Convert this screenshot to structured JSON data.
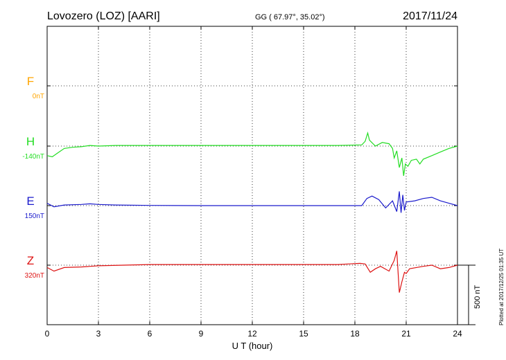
{
  "header": {
    "station": "Lovozero (LOZ)  [AARI]",
    "coords": "GG ( 67.97°,  35.02°)",
    "date": "2017/11/24"
  },
  "footer_note": "Plotted at 2017/12/25 01:35 UT",
  "colors": {
    "F": "#ffa500",
    "H": "#22dd22",
    "E": "#1a1acc",
    "Z": "#dd1111",
    "grid": "#000000"
  },
  "chart_data": {
    "type": "line",
    "xlabel": "U T (hour)",
    "xlim": [
      0,
      24
    ],
    "xticks": [
      0,
      3,
      6,
      9,
      12,
      15,
      18,
      21,
      24
    ],
    "scale_bar": {
      "label": "500 nT",
      "value_nT": 500
    },
    "series": [
      {
        "name": "F",
        "offset_label": "0nT",
        "color": "#ffa500",
        "points": []
      },
      {
        "name": "H",
        "offset_label": "-140nT",
        "color": "#22dd22",
        "points": [
          [
            0,
            -80
          ],
          [
            0.3,
            -90
          ],
          [
            0.6,
            -60
          ],
          [
            1,
            -20
          ],
          [
            1.5,
            -10
          ],
          [
            2,
            -5
          ],
          [
            2.5,
            5
          ],
          [
            3,
            0
          ],
          [
            4,
            5
          ],
          [
            6,
            5
          ],
          [
            9,
            5
          ],
          [
            12,
            5
          ],
          [
            15,
            5
          ],
          [
            17,
            5
          ],
          [
            18.4,
            10
          ],
          [
            18.6,
            40
          ],
          [
            18.75,
            110
          ],
          [
            18.85,
            50
          ],
          [
            19.2,
            0
          ],
          [
            19.6,
            30
          ],
          [
            20,
            20
          ],
          [
            20.2,
            -20
          ],
          [
            20.3,
            -100
          ],
          [
            20.45,
            -40
          ],
          [
            20.6,
            -180
          ],
          [
            20.75,
            -100
          ],
          [
            20.85,
            -250
          ],
          [
            20.95,
            -150
          ],
          [
            21.1,
            -170
          ],
          [
            21.3,
            -120
          ],
          [
            21.6,
            -110
          ],
          [
            21.8,
            -150
          ],
          [
            22,
            -110
          ],
          [
            22.5,
            -80
          ],
          [
            23,
            -50
          ],
          [
            23.5,
            -20
          ],
          [
            24,
            0
          ]
        ]
      },
      {
        "name": "E",
        "offset_label": "150nT",
        "color": "#1a1acc",
        "points": [
          [
            0,
            20
          ],
          [
            0.4,
            -10
          ],
          [
            1,
            5
          ],
          [
            2,
            10
          ],
          [
            2.5,
            15
          ],
          [
            3,
            10
          ],
          [
            4,
            5
          ],
          [
            6,
            2
          ],
          [
            9,
            0
          ],
          [
            12,
            0
          ],
          [
            15,
            0
          ],
          [
            18,
            0
          ],
          [
            18.4,
            0
          ],
          [
            18.7,
            60
          ],
          [
            19,
            80
          ],
          [
            19.4,
            50
          ],
          [
            19.8,
            -20
          ],
          [
            20.2,
            40
          ],
          [
            20.45,
            -50
          ],
          [
            20.6,
            120
          ],
          [
            20.7,
            -60
          ],
          [
            20.8,
            90
          ],
          [
            20.9,
            -40
          ],
          [
            21,
            30
          ],
          [
            21.5,
            40
          ],
          [
            22,
            60
          ],
          [
            22.5,
            70
          ],
          [
            23,
            40
          ],
          [
            23.5,
            20
          ],
          [
            24,
            0
          ]
        ]
      },
      {
        "name": "Z",
        "offset_label": "320nT",
        "color": "#dd1111",
        "points": [
          [
            0,
            -20
          ],
          [
            0.4,
            -50
          ],
          [
            1,
            -20
          ],
          [
            2,
            -15
          ],
          [
            3,
            -5
          ],
          [
            6,
            5
          ],
          [
            9,
            5
          ],
          [
            12,
            5
          ],
          [
            15,
            5
          ],
          [
            17,
            5
          ],
          [
            18.3,
            15
          ],
          [
            18.6,
            10
          ],
          [
            18.9,
            -60
          ],
          [
            19.2,
            -30
          ],
          [
            19.5,
            -10
          ],
          [
            20,
            -50
          ],
          [
            20.3,
            40
          ],
          [
            20.45,
            120
          ],
          [
            20.6,
            -230
          ],
          [
            20.75,
            -140
          ],
          [
            20.9,
            -60
          ],
          [
            21,
            -70
          ],
          [
            21.2,
            -30
          ],
          [
            22,
            -10
          ],
          [
            22.5,
            0
          ],
          [
            23,
            -30
          ],
          [
            23.5,
            -20
          ],
          [
            24,
            0
          ]
        ]
      }
    ]
  }
}
